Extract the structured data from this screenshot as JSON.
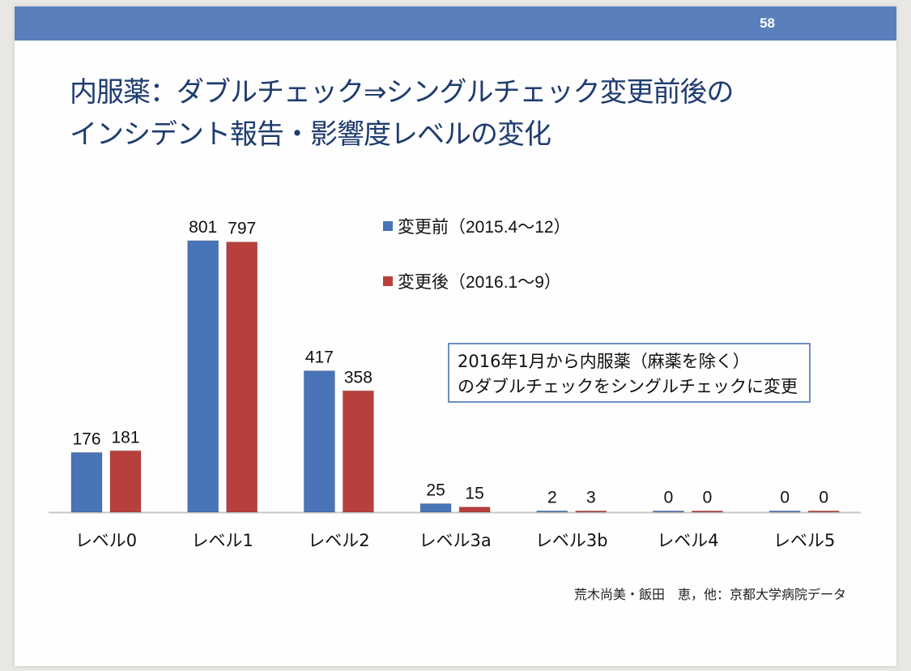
{
  "slide": {
    "page_number": "58",
    "title_line1": "内服薬：ダブルチェック⇒シングルチェック変更前後の",
    "title_line2": "インシデント報告・影響度レベルの変化",
    "annotation_line1": "2016年1月から内服薬（麻薬を除く）",
    "annotation_line2": "のダブルチェックをシングルチェックに変更",
    "source": "荒木尚美・飯田　恵，他：京都大学病院データ",
    "header_color": "#5a7fbd",
    "title_color": "#1f3c70"
  },
  "chart_data": {
    "type": "bar",
    "categories": [
      "レベル0",
      "レベル1",
      "レベル2",
      "レベル3a",
      "レベル3b",
      "レベル4",
      "レベル5"
    ],
    "series": [
      {
        "name": "変更前（2015.4～12）",
        "color": "#4a74b8",
        "values": [
          176,
          801,
          417,
          25,
          2,
          0,
          0
        ]
      },
      {
        "name": "変更後（2016.1～9）",
        "color": "#b8403c",
        "values": [
          181,
          797,
          358,
          15,
          3,
          0,
          0
        ]
      }
    ],
    "ylim": [
      0,
      801
    ],
    "grid": false,
    "data_labels": true,
    "legend": "top-center"
  }
}
